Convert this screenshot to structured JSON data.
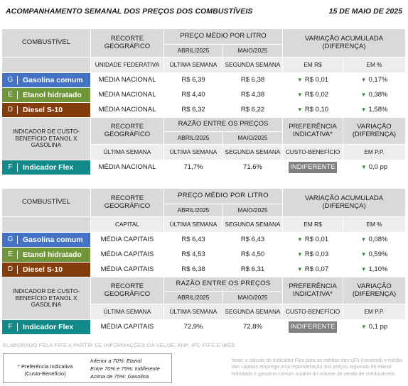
{
  "header": {
    "title": "ACOMPANHAMENTO SEMANAL DOS PREÇOS DOS COMBUSTÍVEIS",
    "date": "15 DE MAIO DE 2025"
  },
  "colors": {
    "gasolina": "#4472c4",
    "etanol": "#70963a",
    "diesel": "#843c0c",
    "flex": "#138a8a",
    "preference_box": "#808080",
    "arrow_down": "#3a8a3a"
  },
  "sections": [
    {
      "h": {
        "combustivel": "COMBUSTÍVEL",
        "recorte": "RECORTE GEOGRÁFICO",
        "preco": "PREÇO MÉDIO POR LITRO",
        "variacao": "VARIAÇÃO ACUMULADA (DIFERENÇA)",
        "abril": "ABRIL/2025",
        "maio": "MAIO/2025",
        "unidade": "UNIDADE FEDERATIVA",
        "ultima": "ÚLTIMA SEMANA",
        "segunda": "SEGUNDA SEMANA",
        "em_rs": "EM R$",
        "em_pct": "EM %"
      },
      "fuels": [
        {
          "letter": "G",
          "name": "Gasolina comum",
          "recorte": "MÉDIA NACIONAL",
          "ultima": "R$ 6,39",
          "segunda": "R$ 6,38",
          "var_rs": "R$ 0,01",
          "var_pct": "0,17%"
        },
        {
          "letter": "E",
          "name": "Etanol hidratado",
          "recorte": "MÉDIA NACIONAL",
          "ultima": "R$ 4,40",
          "segunda": "R$ 4,38",
          "var_rs": "R$ 0,02",
          "var_pct": "0,38%"
        },
        {
          "letter": "D",
          "name": "Diesel S-10",
          "recorte": "MÉDIA NACIONAL",
          "ultima": "R$ 6,32",
          "segunda": "R$ 6,22",
          "var_rs": "R$ 0,10",
          "var_pct": "1,58%"
        }
      ],
      "h2": {
        "indicador": "INDICADOR DE CUSTO-BENEFÍCIO ETANOL X GASOLINA",
        "recorte": "RECORTE GEOGRÁFICO",
        "razao": "RAZÃO ENTRE OS PREÇOS",
        "abril": "ABRIL/2025",
        "maio": "MAIO/2025",
        "preferencia": "PREFERÊNCIA INDICATIVA*",
        "variacao": "VARIAÇÃO (DIFERENÇA)",
        "ultima": "ÚLTIMA SEMANA",
        "segunda": "SEGUNDA SEMANA",
        "custo": "CUSTO-BENEFÍCIO",
        "em_pp": "EM P.P."
      },
      "flex": {
        "letter": "F",
        "name": "Indicador Flex",
        "recorte": "MÉDIA NACIONAL",
        "ultima": "71,7%",
        "segunda": "71,6%",
        "preferencia": "INDIFERENTE",
        "variacao": "0,0 pp"
      }
    },
    {
      "h": {
        "combustivel": "COMBUSTÍVEL",
        "recorte": "RECORTE GEOGRÁFICO",
        "preco": "PREÇO MÉDIO POR LITRO",
        "variacao": "VARIAÇÃO ACUMULADA (DIFERENÇA)",
        "abril": "ABRIL/2025",
        "maio": "MAIO/2025",
        "unidade": "CAPITAL",
        "ultima": "ÚLTIMA SEMANA",
        "segunda": "SEGUNDA SEMANA",
        "em_rs": "EM R$",
        "em_pct": "EM %"
      },
      "fuels": [
        {
          "letter": "G",
          "name": "Gasolina comum",
          "recorte": "MÉDIA CAPITAIS",
          "ultima": "R$ 6,43",
          "segunda": "R$ 6,43",
          "var_rs": "R$ 0,01",
          "var_pct": "0,08%"
        },
        {
          "letter": "E",
          "name": "Etanol hidratado",
          "recorte": "MÉDIA CAPITAIS",
          "ultima": "R$ 4,53",
          "segunda": "R$ 4,50",
          "var_rs": "R$ 0,03",
          "var_pct": "0,59%"
        },
        {
          "letter": "D",
          "name": "Diesel S-10",
          "recorte": "MÉDIA CAPITAIS",
          "ultima": "R$ 6,38",
          "segunda": "R$ 6,31",
          "var_rs": "R$ 0,07",
          "var_pct": "1,10%"
        }
      ],
      "h2": {
        "indicador": "INDICADOR DE CUSTO-BENEFÍCIO ETANOL X GASOLINA",
        "recorte": "RECORTE GEOGRÁFICO",
        "razao": "RAZÃO ENTRE OS PREÇOS",
        "abril": "ABRIL/2025",
        "maio": "MAIO/2025",
        "preferencia": "PREFERÊNCIA INDICATIVA*",
        "variacao": "VARIAÇÃO (DIFERENÇA)",
        "ultima": "ÚLTIMA SEMANA",
        "segunda": "SEGUNDA SEMANA",
        "custo": "CUSTO-BENEFÍCIO",
        "em_pp": "EM P.P."
      },
      "flex": {
        "letter": "F",
        "name": "Indicador Flex",
        "recorte": "MÉDIA CAPITAIS",
        "ultima": "72,9%",
        "segunda": "72,8%",
        "preferencia": "INDIFERENTE",
        "variacao": "0,1 pp"
      }
    }
  ],
  "footer": {
    "source": "ELABORADO PELA FIPE A PARTIR DE INFORMAÇÕES DA VELOE, ANP, IPC-FIPE E IBGE",
    "legend_star_1": "* Preferência Indicativa",
    "legend_star_2": "(Custo-Benefício)",
    "legend_line_1": "Inferior a 70%: Etanol",
    "legend_line_2": "Entre 70% e 75%: Indiferente",
    "legend_line_3": "Acima de 75%: Gasolina",
    "note": "Nota: o cálculo do Indicador Flex para as médias das UFs (nacional) e média das capitais emprega uma reponderação dos preços regionais de etanol hidratado e gasolina comum a partir do volume de venda de combustíveis."
  }
}
